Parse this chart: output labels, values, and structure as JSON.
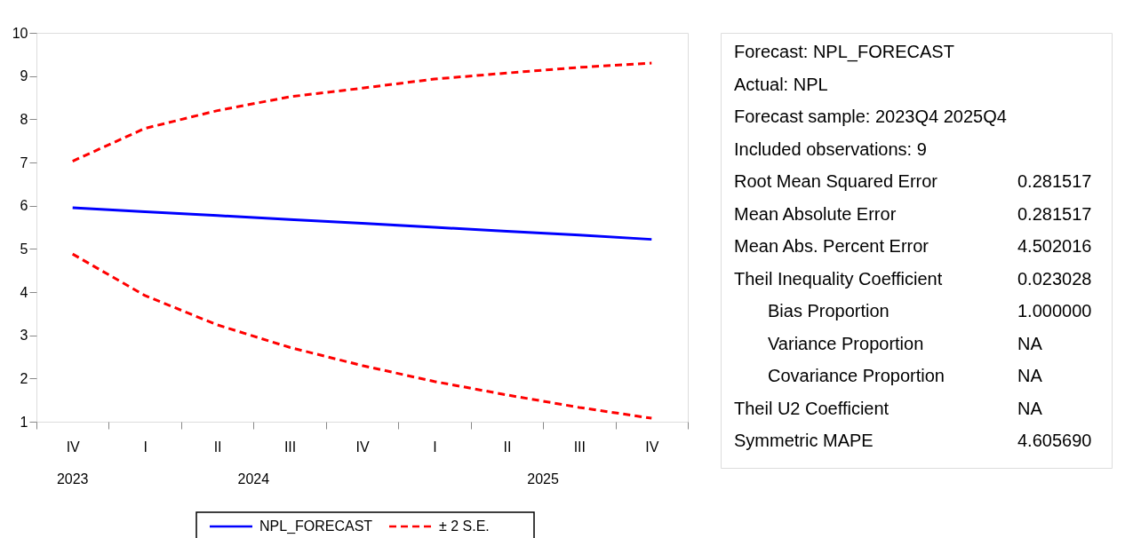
{
  "chart_data": {
    "type": "line",
    "categories": [
      "IV",
      "I",
      "II",
      "III",
      "IV",
      "I",
      "II",
      "III",
      "IV"
    ],
    "series": [
      {
        "name": "NPL_FORECAST",
        "color": "#0000ff",
        "line_style": "solid",
        "values": [
          5.95,
          5.86,
          5.77,
          5.68,
          5.59,
          5.5,
          5.41,
          5.32,
          5.22
        ]
      },
      {
        "name": "± 2 S.E.",
        "color": "#ff0000",
        "line_style": "dashed",
        "values": [
          7.03,
          7.79,
          8.2,
          8.52,
          8.72,
          8.93,
          9.07,
          9.2,
          9.3
        ]
      },
      {
        "color": "#ff0000",
        "line_style": "dashed",
        "values": [
          4.88,
          3.92,
          3.24,
          2.72,
          2.3,
          1.93,
          1.62,
          1.33,
          1.08
        ]
      }
    ],
    "ylim": [
      1,
      10
    ],
    "yticks": [
      1,
      2,
      3,
      4,
      5,
      6,
      7,
      8,
      9,
      10
    ],
    "grid": false,
    "legend": "bottom",
    "marker": "none",
    "annotations": [
      "2023",
      "2024",
      "2025",
      "Forecast: NPL_FORECAST",
      "Actual: NPL",
      "Forecast sample: 2023Q4 2025Q4",
      "Included observations: 9",
      "Root Mean Squared Error",
      "0.281517",
      "Mean Absolute Error",
      "0.281517",
      "Mean Abs. Percent Error",
      "4.502016",
      "Theil Inequality Coefficient",
      "0.023028",
      "Bias Proportion",
      "1.000000",
      "Variance Proportion",
      "NA",
      "Covariance Proportion",
      "NA",
      "Theil U2 Coefficient",
      "NA",
      "Symmetric MAPE",
      "4.605690"
    ]
  }
}
